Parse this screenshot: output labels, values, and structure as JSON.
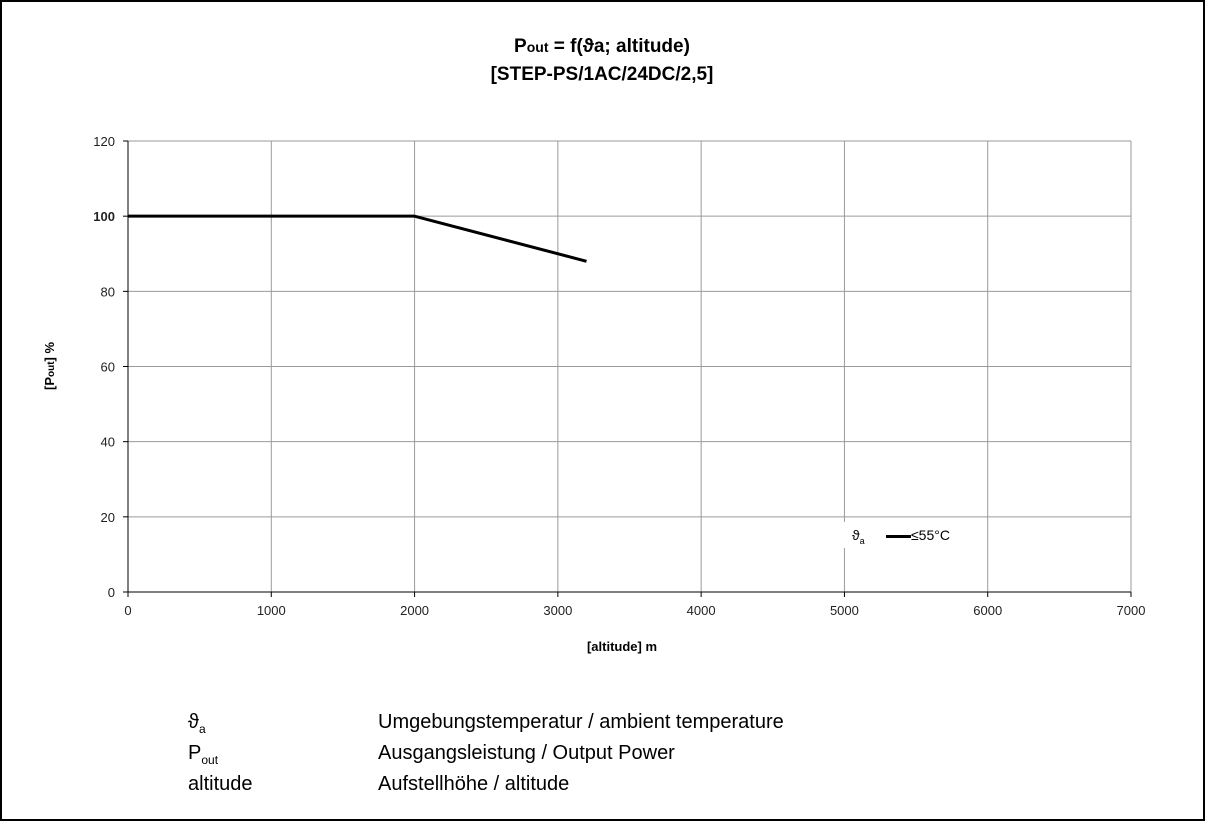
{
  "chart_data": {
    "type": "line",
    "title_line1_prefix": "P",
    "title_line1_sub": "out",
    "title_line1_rest": " = f(ϑa; altitude)",
    "title_line2": "[STEP-PS/1AC/24DC/2,5]",
    "xlabel": "[altitude] m",
    "ylabel_prefix": "[P",
    "ylabel_sub": "out",
    "ylabel_suffix": "] %",
    "xlim": [
      0,
      7000
    ],
    "ylim": [
      0,
      120
    ],
    "x_ticks": [
      "0",
      "1000",
      "2000",
      "3000",
      "4000",
      "5000",
      "6000",
      "7000"
    ],
    "y_ticks": [
      "0",
      "20",
      "40",
      "60",
      "80",
      "100",
      "120"
    ],
    "y_tick_bold": "100",
    "grid": true,
    "legend_placement": "bottom-right",
    "series": [
      {
        "name": "≤55°C",
        "x": [
          0,
          2000,
          3200
        ],
        "y": [
          100,
          100,
          88
        ]
      }
    ]
  },
  "legend": {
    "symbol": "ϑ",
    "symbol_sub": "a",
    "label": "≤55°C"
  },
  "notes": [
    {
      "sym": "ϑ",
      "sub": "a",
      "text": "Umgebungstemperatur / ambient temperature"
    },
    {
      "sym": "P",
      "sub": "out",
      "text": "Ausgangsleistung / Output Power"
    },
    {
      "sym": "altitude",
      "sub": "",
      "text": "Aufstellhöhe / altitude"
    }
  ]
}
